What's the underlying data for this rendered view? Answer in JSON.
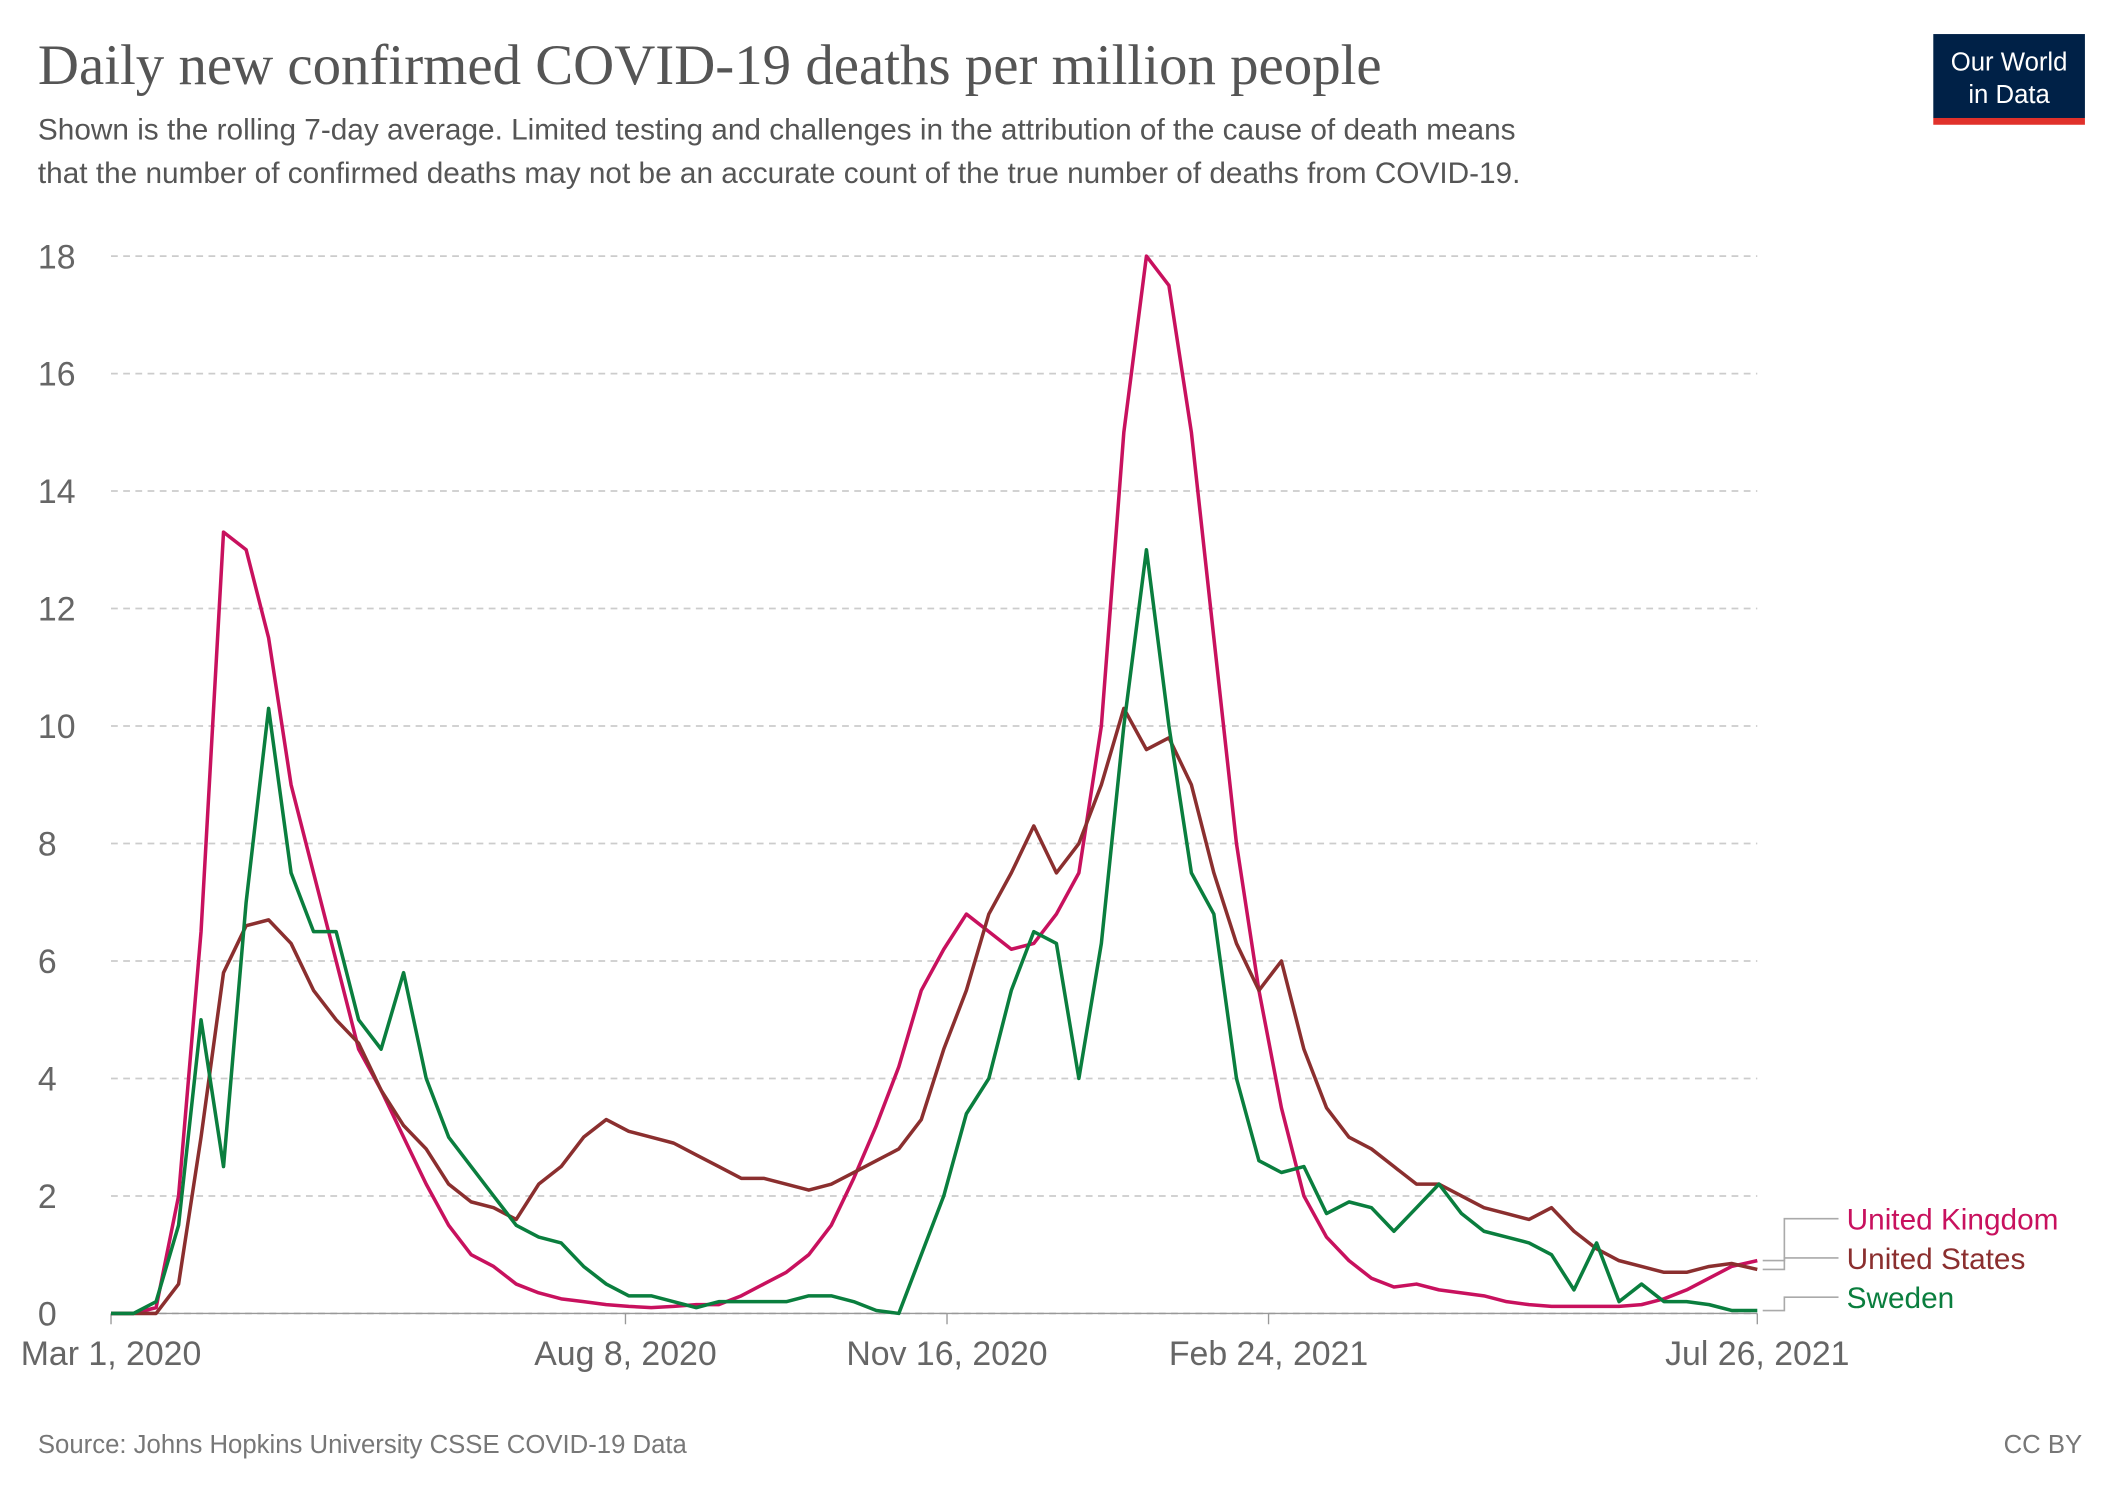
{
  "chart_data": {
    "type": "line",
    "title": "Daily new confirmed COVID-19 deaths per million people",
    "subtitle": [
      "Shown is the rolling 7-day average. Limited testing and challenges in the attribution of the cause of death means",
      "that the number of confirmed deaths may not be an accurate count of the true number of deaths from COVID-19."
    ],
    "logo": [
      "Our World",
      "in Data"
    ],
    "source": "Source: Johns Hopkins University CSSE COVID-19 Data",
    "license": "CC BY",
    "grid": true,
    "xlim": [
      "2020-03-01",
      "2021-07-26"
    ],
    "xticks": [
      {
        "value": "2020-03-01",
        "label": "Mar 1, 2020"
      },
      {
        "value": "2020-08-08",
        "label": "Aug 8, 2020"
      },
      {
        "value": "2020-11-16",
        "label": "Nov 16, 2020"
      },
      {
        "value": "2021-02-24",
        "label": "Feb 24, 2021"
      },
      {
        "value": "2021-07-26",
        "label": "Jul 26, 2021"
      }
    ],
    "ylim": [
      0,
      18
    ],
    "yticks": [
      0,
      2,
      4,
      6,
      8,
      10,
      12,
      14,
      16,
      18
    ],
    "x": [
      "2020-03-01",
      "2020-03-08",
      "2020-03-15",
      "2020-03-22",
      "2020-03-29",
      "2020-04-05",
      "2020-04-12",
      "2020-04-19",
      "2020-04-26",
      "2020-05-03",
      "2020-05-10",
      "2020-05-17",
      "2020-05-24",
      "2020-05-31",
      "2020-06-07",
      "2020-06-14",
      "2020-06-21",
      "2020-06-28",
      "2020-07-05",
      "2020-07-12",
      "2020-07-19",
      "2020-07-26",
      "2020-08-02",
      "2020-08-09",
      "2020-08-16",
      "2020-08-23",
      "2020-08-30",
      "2020-09-06",
      "2020-09-13",
      "2020-09-20",
      "2020-09-27",
      "2020-10-04",
      "2020-10-11",
      "2020-10-18",
      "2020-10-25",
      "2020-11-01",
      "2020-11-08",
      "2020-11-15",
      "2020-11-22",
      "2020-11-29",
      "2020-12-06",
      "2020-12-13",
      "2020-12-20",
      "2020-12-27",
      "2021-01-03",
      "2021-01-10",
      "2021-01-17",
      "2021-01-24",
      "2021-01-31",
      "2021-02-07",
      "2021-02-14",
      "2021-02-21",
      "2021-02-28",
      "2021-03-07",
      "2021-03-14",
      "2021-03-21",
      "2021-03-28",
      "2021-04-04",
      "2021-04-11",
      "2021-04-18",
      "2021-04-25",
      "2021-05-02",
      "2021-05-09",
      "2021-05-16",
      "2021-05-23",
      "2021-05-30",
      "2021-06-06",
      "2021-06-13",
      "2021-06-20",
      "2021-06-27",
      "2021-07-04",
      "2021-07-11",
      "2021-07-18",
      "2021-07-26"
    ],
    "series": [
      {
        "name": "United Kingdom",
        "color": "#c8115e",
        "values": [
          0,
          0,
          0.1,
          2.0,
          6.5,
          13.3,
          13.0,
          11.5,
          9,
          7.5,
          6,
          4.5,
          3.8,
          3,
          2.2,
          1.5,
          1.0,
          0.8,
          0.5,
          0.35,
          0.25,
          0.2,
          0.15,
          0.12,
          0.1,
          0.12,
          0.15,
          0.15,
          0.3,
          0.5,
          0.7,
          1.0,
          1.5,
          2.3,
          3.2,
          4.2,
          5.5,
          6.2,
          6.8,
          6.5,
          6.2,
          6.3,
          6.8,
          7.5,
          10,
          15,
          18,
          17.5,
          15,
          11.5,
          8,
          5.5,
          3.5,
          2.0,
          1.3,
          0.9,
          0.6,
          0.45,
          0.5,
          0.4,
          0.35,
          0.3,
          0.2,
          0.15,
          0.12,
          0.12,
          0.12,
          0.12,
          0.15,
          0.25,
          0.4,
          0.6,
          0.8,
          0.9
        ]
      },
      {
        "name": "United States",
        "color": "#8b2f2f",
        "values": [
          0,
          0,
          0,
          0.5,
          3,
          5.8,
          6.6,
          6.7,
          6.3,
          5.5,
          5.0,
          4.6,
          3.8,
          3.2,
          2.8,
          2.2,
          1.9,
          1.8,
          1.6,
          2.2,
          2.5,
          3.0,
          3.3,
          3.1,
          3.0,
          2.9,
          2.7,
          2.5,
          2.3,
          2.3,
          2.2,
          2.1,
          2.2,
          2.4,
          2.6,
          2.8,
          3.3,
          4.5,
          5.5,
          6.8,
          7.5,
          8.3,
          7.5,
          8.0,
          9.0,
          10.3,
          9.6,
          9.8,
          9.0,
          7.5,
          6.3,
          5.5,
          6.0,
          4.5,
          3.5,
          3.0,
          2.8,
          2.5,
          2.2,
          2.2,
          2.0,
          1.8,
          1.7,
          1.6,
          1.8,
          1.4,
          1.1,
          0.9,
          0.8,
          0.7,
          0.7,
          0.8,
          0.85,
          0.75
        ]
      },
      {
        "name": "Sweden",
        "color": "#0a7e3e",
        "values": [
          0,
          0,
          0.2,
          1.5,
          5.0,
          2.5,
          7.0,
          10.3,
          7.5,
          6.5,
          6.5,
          5.0,
          4.5,
          5.8,
          4.0,
          3.0,
          2.5,
          2.0,
          1.5,
          1.3,
          1.2,
          0.8,
          0.5,
          0.3,
          0.3,
          0.2,
          0.1,
          0.2,
          0.2,
          0.2,
          0.2,
          0.3,
          0.3,
          0.2,
          0.05,
          0,
          1.0,
          2.0,
          3.4,
          4.0,
          5.5,
          6.5,
          6.3,
          4.0,
          6.3,
          10.0,
          13.0,
          10.0,
          7.5,
          6.8,
          4.0,
          2.6,
          2.4,
          2.5,
          1.7,
          1.9,
          1.8,
          1.4,
          1.8,
          2.2,
          1.7,
          1.4,
          1.3,
          1.2,
          1.0,
          0.4,
          1.2,
          0.2,
          0.5,
          0.2,
          0.2,
          0.15,
          0.05,
          0.05
        ]
      }
    ]
  }
}
